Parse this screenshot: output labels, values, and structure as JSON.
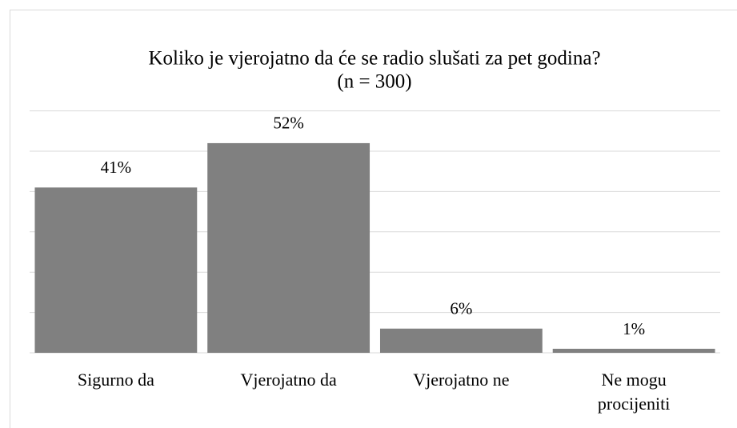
{
  "chart_data": {
    "type": "bar",
    "title": "Koliko je vjerojatno da će se radio slušati za pet godina?",
    "subtitle": "(n = 300)",
    "categories": [
      "Sigurno da",
      "Vjerojatno da",
      "Vjerojatno ne",
      "Ne mogu procijeniti"
    ],
    "values": [
      41,
      52,
      6,
      1
    ],
    "value_labels": [
      "41%",
      "52%",
      "6%",
      "1%"
    ],
    "color": "#808080",
    "ylim": [
      0,
      60
    ],
    "yticks": [
      0,
      10,
      20,
      30,
      40,
      50,
      60
    ],
    "grid": true
  }
}
